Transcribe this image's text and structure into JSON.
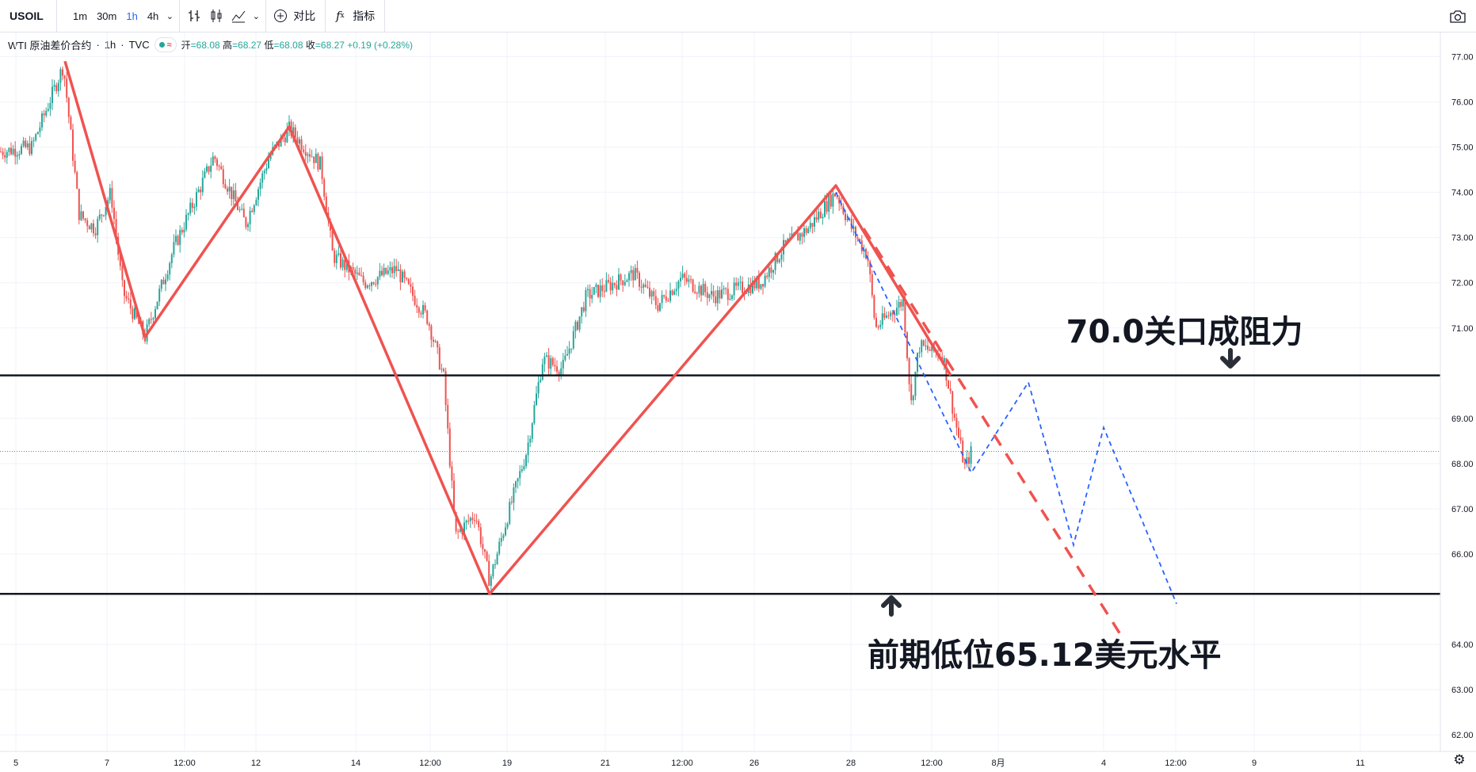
{
  "toolbar": {
    "symbol": "USOIL",
    "intervals": [
      "1m",
      "30m",
      "1h",
      "4h"
    ],
    "active_interval": "1h",
    "compare_label": "对比",
    "indicators_label": "指标"
  },
  "legend": {
    "name": "WTI 原油差价合约",
    "interval": "1h",
    "source": "TVC",
    "open_label": "开",
    "open": "68.08",
    "high_label": "高",
    "high": "68.27",
    "low_label": "低",
    "low": "68.08",
    "close_label": "收",
    "close": "68.27",
    "change": "+0.19",
    "change_pct": "(+0.28%)"
  },
  "colors": {
    "up": "#26a69a",
    "down": "#ef5350",
    "zigzag": "#ef5350",
    "projection": "#2962ff",
    "level_line": "#131722"
  },
  "annotations": {
    "resistance_text": "70.0关口成阻力",
    "support_text": "前期低位65.12美元水平"
  },
  "chart_data": {
    "type": "candlestick",
    "price_axis": {
      "min": 61.6,
      "max": 77.5,
      "ticks": [
        "77.00",
        "76.00",
        "75.00",
        "74.00",
        "73.00",
        "72.00",
        "71.00",
        "69.00",
        "68.00",
        "67.00",
        "66.00",
        "64.00",
        "63.00",
        "62.00"
      ]
    },
    "time_axis": {
      "ticks": [
        "5",
        "7",
        "12:00",
        "12",
        "14",
        "12:00",
        "19",
        "21",
        "12:00",
        "26",
        "28",
        "12:00",
        "8月",
        "4",
        "12:00",
        "9",
        "11"
      ]
    },
    "level_labels": {
      "resistance": "69.95",
      "support": "65.12",
      "last_price": "68.27"
    },
    "levels": [
      {
        "name": "resistance",
        "price": 69.95
      },
      {
        "name": "support",
        "price": 65.12
      },
      {
        "name": "last",
        "price": 68.27
      }
    ],
    "price_path": [
      [
        0,
        74.9
      ],
      [
        40,
        75.0
      ],
      [
        80,
        76.8
      ],
      [
        100,
        73.5
      ],
      [
        120,
        73.2
      ],
      [
        140,
        74.0
      ],
      [
        155,
        71.8
      ],
      [
        183,
        70.8
      ],
      [
        220,
        72.8
      ],
      [
        270,
        74.8
      ],
      [
        310,
        73.3
      ],
      [
        340,
        74.8
      ],
      [
        365,
        75.4
      ],
      [
        405,
        74.6
      ],
      [
        420,
        72.6
      ],
      [
        460,
        72.0
      ],
      [
        500,
        72.3
      ],
      [
        540,
        71.2
      ],
      [
        560,
        69.9
      ],
      [
        575,
        66.4
      ],
      [
        600,
        66.9
      ],
      [
        618,
        65.4
      ],
      [
        640,
        66.8
      ],
      [
        665,
        68.3
      ],
      [
        685,
        70.3
      ],
      [
        710,
        70.1
      ],
      [
        740,
        71.7
      ],
      [
        800,
        72.2
      ],
      [
        830,
        71.5
      ],
      [
        860,
        72.1
      ],
      [
        900,
        71.7
      ],
      [
        960,
        72.0
      ],
      [
        990,
        72.8
      ],
      [
        1020,
        73.2
      ],
      [
        1055,
        74.0
      ],
      [
        1075,
        73.2
      ],
      [
        1095,
        72.6
      ],
      [
        1105,
        71.0
      ],
      [
        1140,
        71.6
      ],
      [
        1150,
        69.3
      ],
      [
        1160,
        70.6
      ],
      [
        1190,
        70.4
      ],
      [
        1205,
        69.0
      ],
      [
        1218,
        67.9
      ],
      [
        1226,
        68.27
      ]
    ],
    "zigzag": [
      [
        82,
        76.9
      ],
      [
        183,
        70.8
      ],
      [
        365,
        75.45
      ],
      [
        618,
        65.12
      ],
      [
        1055,
        74.15
      ],
      [
        1200,
        69.95
      ]
    ],
    "bearish_channel_dashed": [
      [
        1090,
        73.2
      ],
      [
        1415,
        64.2
      ]
    ],
    "projection_path": [
      [
        1055,
        74.0
      ],
      [
        1226,
        67.8
      ],
      [
        1298,
        69.8
      ],
      [
        1355,
        66.2
      ],
      [
        1393,
        68.8
      ],
      [
        1485,
        64.9
      ]
    ]
  }
}
